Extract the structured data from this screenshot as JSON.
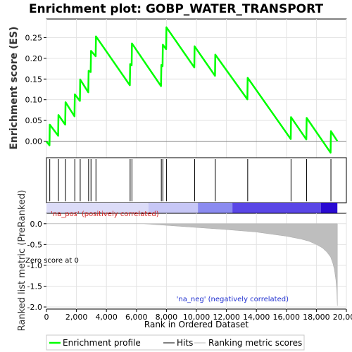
{
  "chart_data": {
    "type": "line",
    "title": "Enrichment plot: GOBP_WATER_TRANSPORT",
    "xlabel": "Rank in Ordered Dataset",
    "xlim": [
      0,
      20000
    ],
    "x_ticks": [
      0,
      2000,
      4000,
      6000,
      8000,
      10000,
      12000,
      14000,
      16000,
      18000,
      20000
    ],
    "x_tick_labels": [
      "0",
      "2,000",
      "4,000",
      "6,000",
      "8,000",
      "10,000",
      "12,000",
      "14,000",
      "16,000",
      "18,000",
      "20,000"
    ],
    "n_genes": 19400,
    "es_panel": {
      "ylabel": "Enrichment score (ES)",
      "ylim": [
        -0.04,
        0.295
      ],
      "y_ticks": [
        0.0,
        0.05,
        0.1,
        0.15,
        0.2,
        0.25
      ],
      "y_tick_labels": [
        "0.00",
        "0.05",
        "0.10",
        "0.15",
        "0.20",
        "0.25"
      ],
      "series": [
        {
          "name": "Enrichment profile",
          "color": "#00ff00",
          "x": [
            0,
            200,
            220,
            780,
            800,
            1250,
            1270,
            1870,
            1890,
            2230,
            2250,
            2790,
            2810,
            2950,
            2970,
            3280,
            3300,
            5560,
            5580,
            5680,
            5700,
            7640,
            7660,
            7740,
            7760,
            7980,
            8000,
            9860,
            9880,
            11240,
            11260,
            13400,
            13420,
            16290,
            16310,
            17330,
            17350,
            18950,
            18970,
            19400
          ],
          "y": [
            -0.001,
            -0.01,
            0.04,
            0.013,
            0.063,
            0.04,
            0.094,
            0.06,
            0.113,
            0.097,
            0.149,
            0.118,
            0.17,
            0.167,
            0.218,
            0.205,
            0.253,
            0.135,
            0.186,
            0.183,
            0.236,
            0.133,
            0.184,
            0.181,
            0.233,
            0.222,
            0.275,
            0.178,
            0.229,
            0.158,
            0.209,
            0.101,
            0.153,
            0.005,
            0.058,
            0.004,
            0.056,
            -0.028,
            0.024,
            0.0
          ]
        }
      ]
    },
    "hits": {
      "name": "Hits",
      "x": [
        220,
        800,
        1270,
        1890,
        2250,
        2810,
        2970,
        3300,
        5580,
        5700,
        7660,
        7760,
        8000,
        9880,
        11260,
        13420,
        16310,
        17350,
        18970
      ]
    },
    "metric_panel": {
      "ylabel": "Ranked list metric (PreRanked)",
      "ylim": [
        -2.05,
        0.25
      ],
      "y_ticks": [
        0.0,
        -0.5,
        -1.0,
        -1.5,
        -2.0
      ],
      "y_tick_labels": [
        "0.0",
        "-0.5",
        "-1.0",
        "-1.5",
        "-2.0"
      ],
      "series": [
        {
          "name": "Ranking metric scores",
          "color": "#bebebe",
          "x": [
            0,
            6500,
            8000,
            10000,
            12000,
            14000,
            15000,
            16000,
            17000,
            17500,
            18000,
            18400,
            18700,
            18950,
            19100,
            19200,
            19300,
            19360,
            19400
          ],
          "y": [
            0.0,
            0.0,
            -0.04,
            -0.09,
            -0.14,
            -0.2,
            -0.25,
            -0.3,
            -0.37,
            -0.42,
            -0.5,
            -0.58,
            -0.68,
            -0.8,
            -0.95,
            -1.1,
            -1.35,
            -1.6,
            -1.97
          ]
        }
      ],
      "zero_cross_label": "Zero score at 0",
      "pos_label": "'na_pos' (positively correlated)",
      "neg_label": "'na_neg' (negatively correlated)",
      "band_segments": [
        {
          "x0": 0,
          "x1": 6800,
          "color": "#dcdcf8"
        },
        {
          "x0": 6800,
          "x1": 10100,
          "color": "#c7c7f6"
        },
        {
          "x0": 10100,
          "x1": 12400,
          "color": "#8b8bf0"
        },
        {
          "x0": 12400,
          "x1": 18300,
          "color": "#5a46e6"
        },
        {
          "x0": 18300,
          "x1": 19400,
          "color": "#2a0ad2"
        }
      ]
    },
    "legend": {
      "placement": "bottom",
      "entries": [
        "Enrichment profile",
        "Hits",
        "Ranking metric scores"
      ]
    },
    "colors": {
      "profile": "#00ff00",
      "hits": "#000000",
      "metric": "#bebebe",
      "pos_label": "#d42020",
      "neg_label": "#2030d0"
    }
  }
}
